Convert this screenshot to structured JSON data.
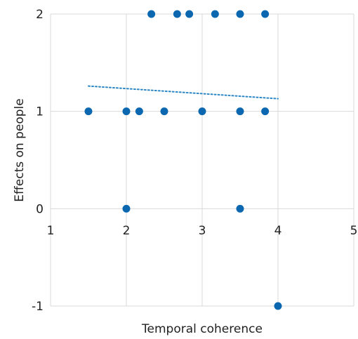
{
  "chart_data": {
    "type": "scatter",
    "title": "",
    "xlabel": "Temporal coherence",
    "ylabel": "Effects on people",
    "xlim": [
      1,
      5
    ],
    "ylim": [
      -1,
      2
    ],
    "xticks": [
      "1",
      "2",
      "3",
      "4",
      "5"
    ],
    "yticks": [
      "-1",
      "0",
      "1",
      "2"
    ],
    "grid": true,
    "legend": "none",
    "colors": {
      "points": "#0b67b0",
      "trendline": "#2b86c5",
      "grid": "#d9d9d9"
    },
    "points": [
      {
        "x": 2.33,
        "y": 2
      },
      {
        "x": 2.67,
        "y": 2
      },
      {
        "x": 2.83,
        "y": 2
      },
      {
        "x": 3.17,
        "y": 2
      },
      {
        "x": 3.5,
        "y": 2
      },
      {
        "x": 3.83,
        "y": 2
      },
      {
        "x": 1.5,
        "y": 1
      },
      {
        "x": 2.0,
        "y": 1
      },
      {
        "x": 2.17,
        "y": 1
      },
      {
        "x": 2.5,
        "y": 1
      },
      {
        "x": 3.0,
        "y": 1
      },
      {
        "x": 3.5,
        "y": 1
      },
      {
        "x": 3.83,
        "y": 1
      },
      {
        "x": 2.0,
        "y": 0
      },
      {
        "x": 3.5,
        "y": 0
      },
      {
        "x": 4.0,
        "y": -1
      }
    ],
    "trendline": {
      "style": "dotted",
      "x": [
        1.5,
        4.0
      ],
      "y": [
        1.26,
        1.13
      ]
    }
  }
}
